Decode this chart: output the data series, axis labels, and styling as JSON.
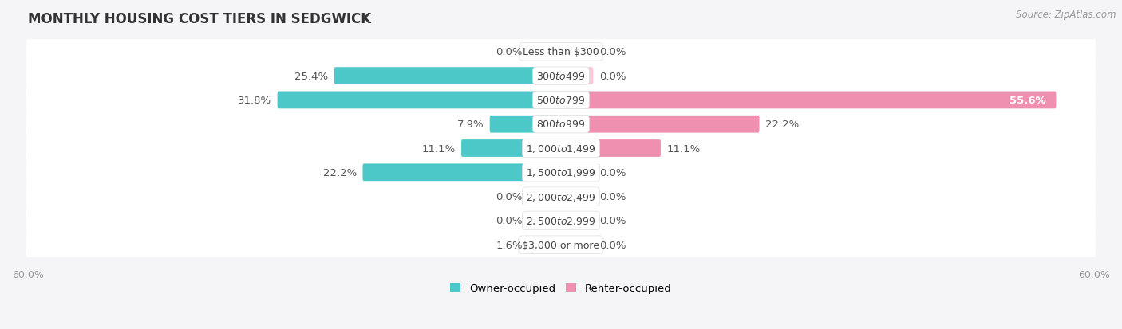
{
  "title": "MONTHLY HOUSING COST TIERS IN SEDGWICK",
  "source": "Source: ZipAtlas.com",
  "categories": [
    "Less than $300",
    "$300 to $499",
    "$500 to $799",
    "$800 to $999",
    "$1,000 to $1,499",
    "$1,500 to $1,999",
    "$2,000 to $2,499",
    "$2,500 to $2,999",
    "$3,000 or more"
  ],
  "owner_values": [
    0.0,
    25.4,
    31.8,
    7.9,
    11.1,
    22.2,
    0.0,
    0.0,
    1.6
  ],
  "renter_values": [
    0.0,
    0.0,
    55.6,
    22.2,
    11.1,
    0.0,
    0.0,
    0.0,
    0.0
  ],
  "owner_color": "#4CC8C8",
  "renter_color": "#F090B0",
  "owner_color_light": "#A8DEDE",
  "renter_color_light": "#F8C8D8",
  "row_bg_color": "#EBEBEB",
  "fig_bg_color": "#F5F5F8",
  "axis_max": 60.0,
  "min_bar_width": 3.5,
  "title_fontsize": 12,
  "label_fontsize": 9.5,
  "tick_fontsize": 9,
  "source_fontsize": 8.5,
  "cat_fontsize": 9
}
